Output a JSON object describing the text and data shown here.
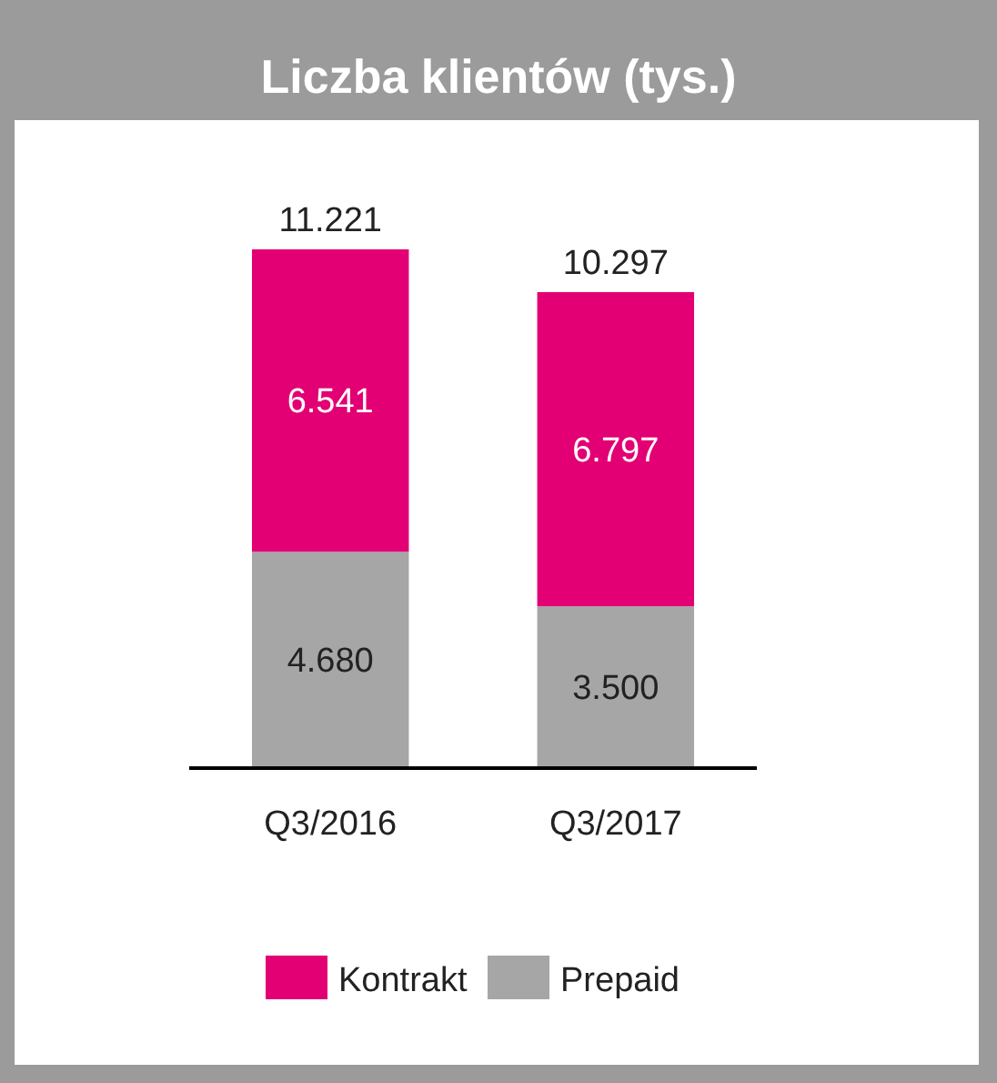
{
  "chart_data": {
    "type": "bar",
    "title": "Liczba klientów (tys.)",
    "categories": [
      "Q3/2016",
      "Q3/2017"
    ],
    "stacked": true,
    "series": [
      {
        "name": "Prepaid",
        "color": "#a6a6a6",
        "values": [
          4680,
          3500
        ],
        "value_labels": [
          "4.680",
          "3.500"
        ]
      },
      {
        "name": "Kontrakt",
        "color": "#e20074",
        "values": [
          6541,
          6797
        ],
        "value_labels": [
          "6.541",
          "6.797"
        ]
      }
    ],
    "totals": [
      "11.221",
      "10.297"
    ],
    "legend": "bottom"
  }
}
